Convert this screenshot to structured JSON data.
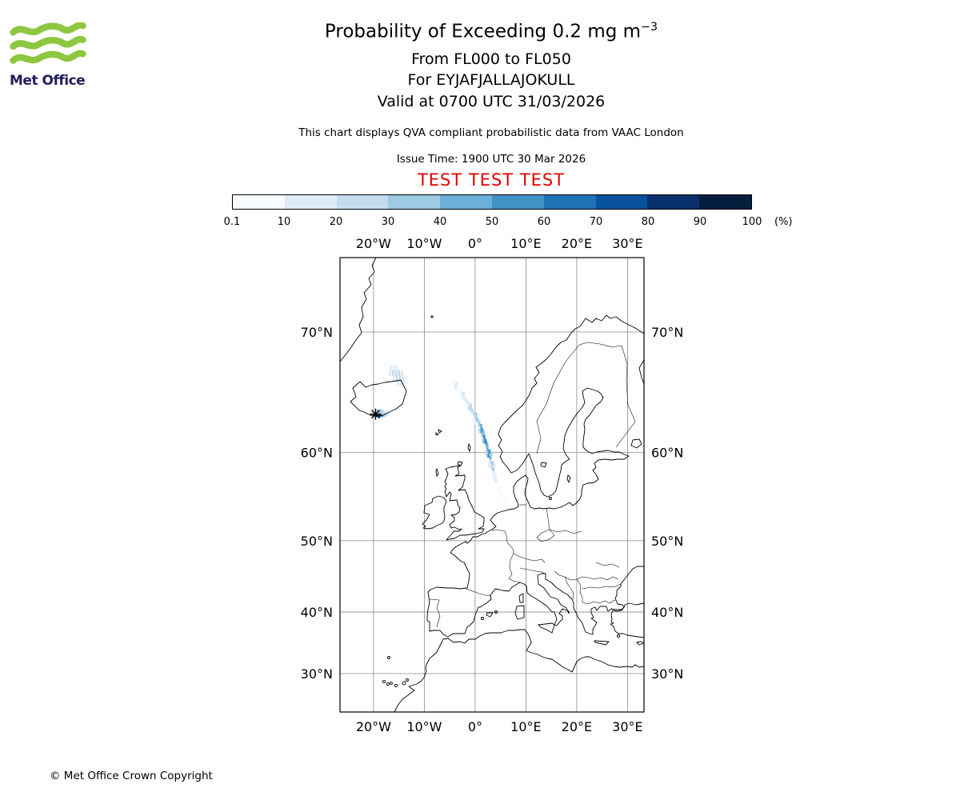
{
  "logo": {
    "text": "Met Office",
    "green": "#8dc63f",
    "navy": "#211d5e"
  },
  "header": {
    "title_main": "Probability of Exceeding 0.2 mg m",
    "title_exp": "−3",
    "subtitle1": "From FL000 to FL050",
    "subtitle2": "For EYJAFJALLAJOKULL",
    "subtitle3": "Valid at 0700 UTC 31/03/2026",
    "note": "This chart displays QVA compliant probabilistic data from VAAC London",
    "issue_time": "Issue Time: 1900 UTC 30 Mar 2026",
    "test_banner": "TEST TEST TEST",
    "test_color": "#e00000"
  },
  "legend": {
    "tick_labels": [
      "0.1",
      "10",
      "20",
      "30",
      "40",
      "50",
      "60",
      "70",
      "80",
      "90",
      "100"
    ],
    "unit_label": "(%)"
  },
  "map": {
    "lon_labels": [
      {
        "text": "20°W",
        "lon": -20
      },
      {
        "text": "10°W",
        "lon": -10
      },
      {
        "text": "0°",
        "lon": 0
      },
      {
        "text": "10°E",
        "lon": 10
      },
      {
        "text": "20°E",
        "lon": 20
      },
      {
        "text": "30°E",
        "lon": 30
      }
    ],
    "lat_labels": [
      {
        "text": "70°N",
        "lat": 70
      },
      {
        "text": "60°N",
        "lat": 60
      },
      {
        "text": "50°N",
        "lat": 50
      },
      {
        "text": "40°N",
        "lat": 40
      },
      {
        "text": "30°N",
        "lat": 30
      }
    ],
    "volcano": {
      "name": "EYJAFJALLAJOKULL",
      "lon": -19.6,
      "lat": 63.6
    }
  },
  "chart_data": {
    "type": "heatmap",
    "title": "Probability of Exceeding 0.2 mg m^-3",
    "flight_levels": "FL000 to FL050",
    "volcano": "EYJAFJALLAJOKULL",
    "valid_time": "0700 UTC 31/03/2026",
    "issue_time": "1900 UTC 30 Mar 2026",
    "source": "VAAC London",
    "units": "%",
    "projection": "mercator",
    "lon_range": [
      -26.6,
      33.2
    ],
    "lat_range": [
      23.2,
      74.5
    ],
    "prob_bins": [
      0.1,
      10,
      20,
      30,
      40,
      50,
      60,
      70,
      80,
      90,
      100
    ],
    "bin_colors": [
      "#f7fbff",
      "#deebf7",
      "#c6dbef",
      "#9ecae1",
      "#6baed6",
      "#4292c6",
      "#2171b5",
      "#08519c",
      "#08306b",
      "#041f3d"
    ],
    "cells_format": "[lon_deg, lat_deg, probability_percent]",
    "cells": [
      [
        -17.6,
        67.8,
        5
      ],
      [
        -17,
        67.8,
        8
      ],
      [
        -16.4,
        67.8,
        6
      ],
      [
        -17.2,
        67.4,
        8
      ],
      [
        -16.6,
        67.4,
        14
      ],
      [
        -16,
        67.4,
        18
      ],
      [
        -15.4,
        67.4,
        12
      ],
      [
        -16.8,
        67,
        12
      ],
      [
        -16.2,
        67,
        22
      ],
      [
        -15.6,
        67,
        28
      ],
      [
        -15,
        67,
        20
      ],
      [
        -14.4,
        67,
        10
      ],
      [
        -16,
        66.6,
        16
      ],
      [
        -15.4,
        66.6,
        25
      ],
      [
        -14.8,
        66.6,
        28
      ],
      [
        -14.2,
        66.6,
        18
      ],
      [
        -13.6,
        66.6,
        8
      ],
      [
        -15.2,
        66.2,
        12
      ],
      [
        -14.6,
        66.2,
        18
      ],
      [
        -14,
        66.2,
        10
      ],
      [
        -13.4,
        66.2,
        5
      ],
      [
        -19.6,
        63.55,
        45
      ],
      [
        -19.2,
        63.55,
        65
      ],
      [
        -18.8,
        63.55,
        75
      ],
      [
        -18.4,
        63.55,
        55
      ],
      [
        -18,
        63.55,
        35
      ],
      [
        -19.4,
        63.8,
        25
      ],
      [
        -19,
        63.8,
        35
      ],
      [
        -18.6,
        63.8,
        30
      ],
      [
        -18.2,
        63.8,
        20
      ],
      [
        -17.6,
        63.6,
        22
      ],
      [
        -17.2,
        63.65,
        12
      ],
      [
        -16.8,
        63.7,
        8
      ],
      [
        -14.6,
        64.3,
        8
      ],
      [
        -14.1,
        64.35,
        6
      ],
      [
        -4.4,
        66.3,
        5
      ],
      [
        -4,
        66.3,
        8
      ],
      [
        -3.6,
        66.1,
        10
      ],
      [
        -4.2,
        65.9,
        6
      ],
      [
        -3.8,
        65.9,
        12
      ],
      [
        -3.4,
        65.7,
        8
      ],
      [
        -3,
        65.5,
        8
      ],
      [
        -2.6,
        65.3,
        14
      ],
      [
        -2.2,
        65.3,
        16
      ],
      [
        -2.4,
        65.1,
        18
      ],
      [
        -2,
        64.9,
        14
      ],
      [
        -2.8,
        64.9,
        8
      ],
      [
        -1.6,
        64.7,
        12
      ],
      [
        -1.2,
        64.5,
        18
      ],
      [
        -0.8,
        64.3,
        22
      ],
      [
        -1.4,
        64.1,
        14
      ],
      [
        -1,
        64.1,
        25
      ],
      [
        -0.6,
        63.9,
        20
      ],
      [
        -0.2,
        63.7,
        25
      ],
      [
        0.2,
        63.5,
        30
      ],
      [
        0,
        63.3,
        22
      ],
      [
        0.4,
        63.1,
        35
      ],
      [
        0.8,
        62.9,
        28
      ],
      [
        0,
        62.9,
        15
      ],
      [
        0.8,
        62.7,
        30
      ],
      [
        1.2,
        62.5,
        40
      ],
      [
        1,
        62.1,
        45
      ],
      [
        1.4,
        62.1,
        50
      ],
      [
        1.6,
        61.9,
        40
      ],
      [
        0.8,
        62.1,
        25
      ],
      [
        1.4,
        61.7,
        35
      ],
      [
        1.8,
        61.5,
        55
      ],
      [
        2,
        61.1,
        60
      ],
      [
        2.2,
        60.9,
        55
      ],
      [
        1.6,
        61.1,
        30
      ],
      [
        2.4,
        60.7,
        45
      ],
      [
        2.4,
        60.3,
        40
      ],
      [
        2.8,
        60.1,
        55
      ],
      [
        2.6,
        59.7,
        50
      ],
      [
        3,
        59.5,
        40
      ],
      [
        3.2,
        59.9,
        30
      ],
      [
        2.2,
        59.9,
        20
      ],
      [
        3,
        59.1,
        28
      ],
      [
        3.4,
        58.9,
        35
      ],
      [
        3.2,
        58.5,
        25
      ],
      [
        3.6,
        58.3,
        30
      ],
      [
        3.8,
        58.7,
        18
      ],
      [
        2.8,
        58.7,
        12
      ],
      [
        3.6,
        57.9,
        14
      ],
      [
        4,
        57.7,
        18
      ],
      [
        3.8,
        57.3,
        12
      ],
      [
        4.2,
        57.1,
        15
      ],
      [
        4.4,
        57.5,
        8
      ],
      [
        4.2,
        56.7,
        6
      ],
      [
        4.6,
        56.5,
        9
      ],
      [
        4.4,
        56.1,
        5
      ],
      [
        4.8,
        55.9,
        7
      ],
      [
        5,
        55.5,
        3
      ],
      [
        5.4,
        55.3,
        2
      ],
      [
        5.2,
        56.3,
        4
      ],
      [
        5.6,
        55.1,
        1
      ],
      [
        6,
        54.9,
        2
      ],
      [
        5.8,
        55.5,
        1
      ],
      [
        6.4,
        55.1,
        1
      ]
    ]
  },
  "footer": {
    "copyright": "© Met Office Crown Copyright"
  }
}
